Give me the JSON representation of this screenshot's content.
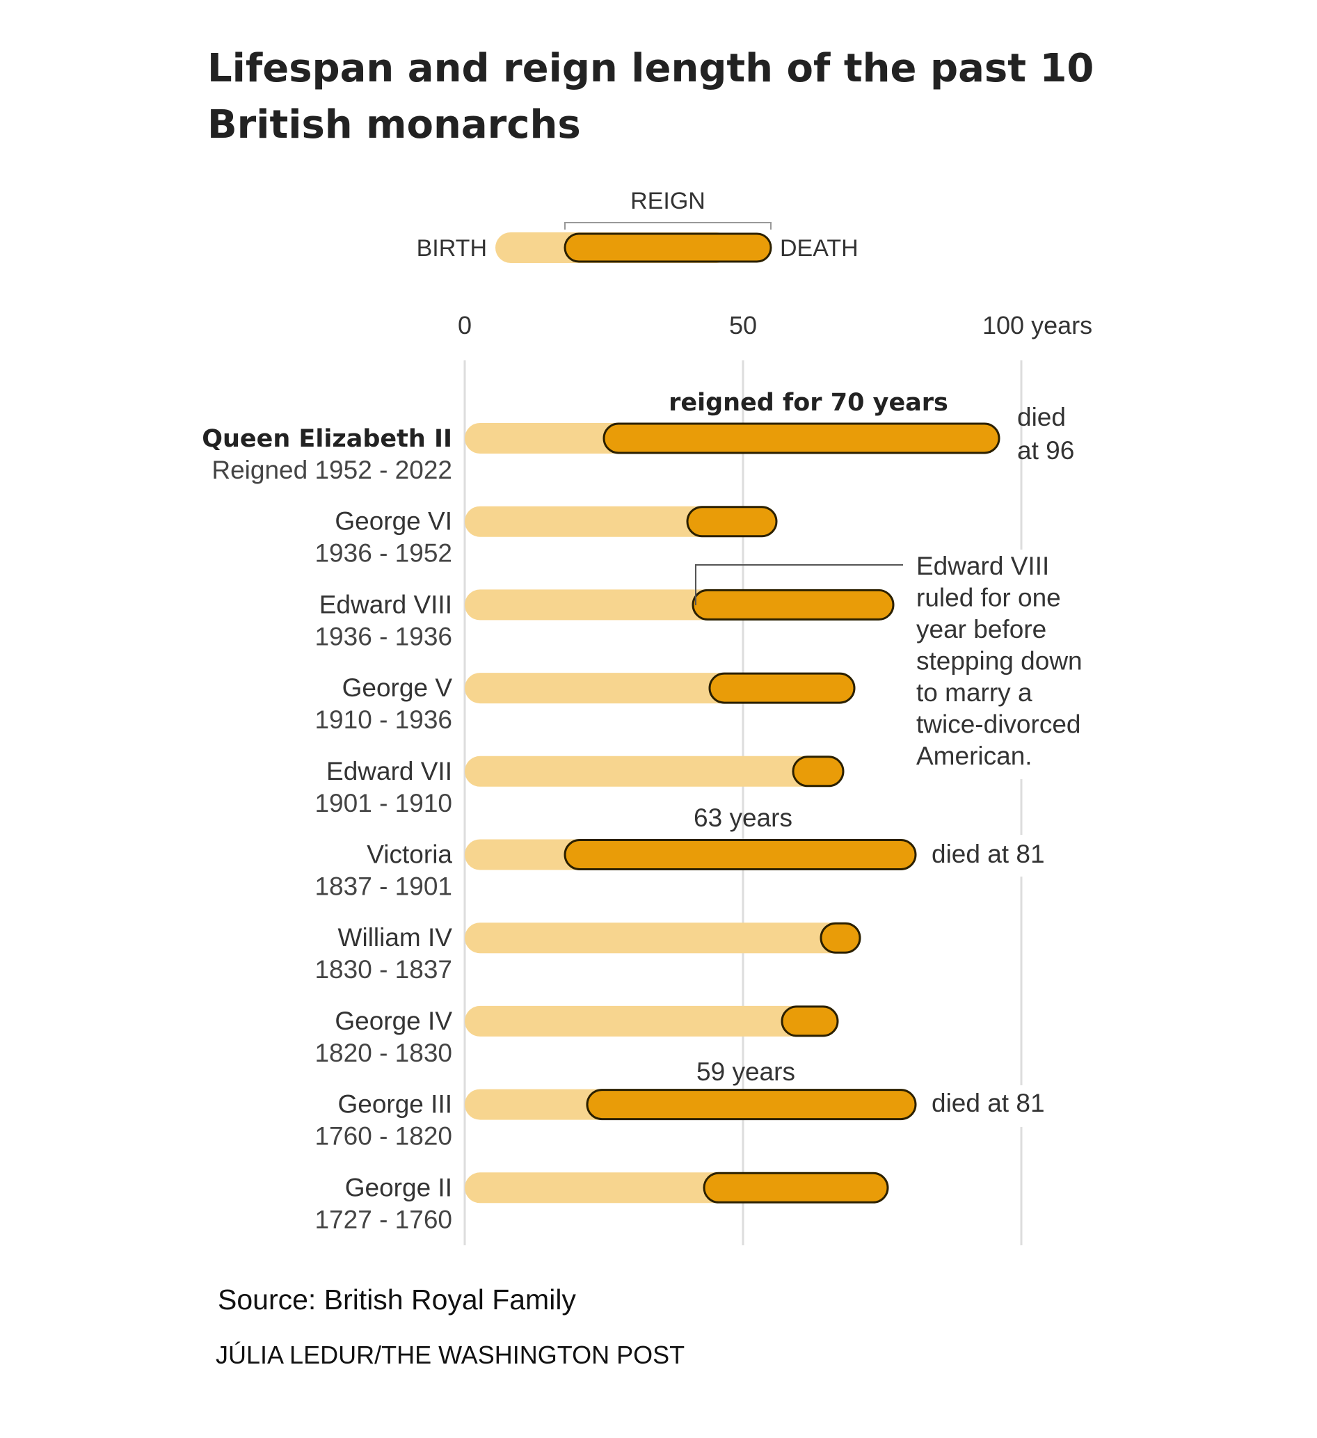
{
  "chart_data": {
    "type": "range-bar",
    "title": "Lifespan and reign length of the past 10 British monarchs",
    "title_lines": [
      "Lifespan and reign length of the past 10",
      "British monarchs"
    ],
    "legend": {
      "reign": "REIGN",
      "birth": "BIRTH",
      "death": "DEATH"
    },
    "x_axis": {
      "ticks": [
        {
          "value": 0,
          "label": "0"
        },
        {
          "value": 50,
          "label": "50"
        },
        {
          "value": 100,
          "label": "100 years"
        }
      ],
      "range": [
        0,
        100
      ],
      "grid": true
    },
    "colors": {
      "lifespan": "#f7d58f",
      "reign": "#e99c08",
      "reign_stroke": "#2b2000",
      "grid": "#dddddd"
    },
    "monarchs": [
      {
        "name": "Queen Elizabeth II",
        "years": "Reigned 1952 - 2022",
        "reign_start_age": 25,
        "death_age": 96,
        "highlight": true
      },
      {
        "name": "George VI",
        "years": "1936 - 1952",
        "reign_start_age": 40,
        "death_age": 56
      },
      {
        "name": "Edward VIII",
        "years": "1936 - 1936",
        "reign_start_age": 41,
        "death_age": 77
      },
      {
        "name": "George V",
        "years": "1910 - 1936",
        "reign_start_age": 44,
        "death_age": 70
      },
      {
        "name": "Edward VII",
        "years": "1901 - 1910",
        "reign_start_age": 59,
        "death_age": 68
      },
      {
        "name": "Victoria",
        "years": "1837 - 1901",
        "reign_start_age": 18,
        "death_age": 81
      },
      {
        "name": "William IV",
        "years": "1830 - 1837",
        "reign_start_age": 64,
        "death_age": 71
      },
      {
        "name": "George IV",
        "years": "1820 - 1830",
        "reign_start_age": 57,
        "death_age": 67
      },
      {
        "name": "George III",
        "years": "1760 - 1820",
        "reign_start_age": 22,
        "death_age": 81
      },
      {
        "name": "George II",
        "years": "1727 - 1760",
        "reign_start_age": 43,
        "death_age": 76
      }
    ],
    "annotations": {
      "elizabeth_reign": "reigned for 70 years",
      "elizabeth_death": [
        "died",
        "at 96"
      ],
      "edward_viii_note": [
        "Edward VIII",
        "ruled for one",
        "year before",
        "stepping down",
        "to marry a",
        "twice-divorced",
        "American."
      ],
      "victoria_reign": "63 years",
      "victoria_death": "died at 81",
      "george_iii_reign": "59 years",
      "george_iii_death": "died at 81"
    }
  },
  "footer": {
    "source": "Source: British Royal Family",
    "credit": "JÚLIA LEDUR/THE WASHINGTON POST"
  }
}
